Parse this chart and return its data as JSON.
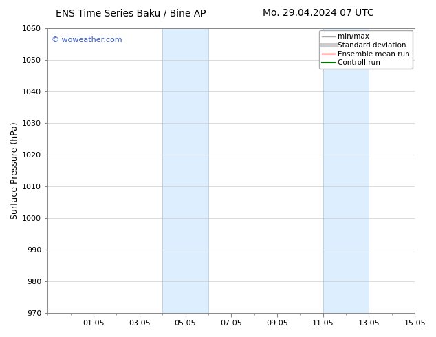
{
  "title_left": "ENS Time Series Baku / Bine AP",
  "title_right": "Mo. 29.04.2024 07 UTC",
  "ylabel": "Surface Pressure (hPa)",
  "ylim": [
    970,
    1060
  ],
  "yticks": [
    970,
    980,
    990,
    1000,
    1010,
    1020,
    1030,
    1040,
    1050,
    1060
  ],
  "xtick_labels": [
    "01.05",
    "03.05",
    "05.05",
    "07.05",
    "09.05",
    "11.05",
    "13.05",
    "15.05"
  ],
  "xtick_offsets": [
    2,
    4,
    6,
    8,
    10,
    12,
    14,
    16
  ],
  "xlim": [
    0,
    16
  ],
  "shaded_bands": [
    {
      "start": 5,
      "end": 7
    },
    {
      "start": 12,
      "end": 14
    }
  ],
  "shaded_color": "#ddeeff",
  "shaded_edge_color": "#bbccdd",
  "background_color": "#ffffff",
  "watermark_text": "© woweather.com",
  "watermark_color": "#3355cc",
  "legend_items": [
    {
      "label": "min/max",
      "color": "#aaaaaa",
      "lw": 1.0
    },
    {
      "label": "Standard deviation",
      "color": "#cccccc",
      "lw": 5
    },
    {
      "label": "Ensemble mean run",
      "color": "#ff0000",
      "lw": 1.0
    },
    {
      "label": "Controll run",
      "color": "#007700",
      "lw": 1.5
    }
  ],
  "grid_color": "#cccccc",
  "title_fontsize": 10,
  "tick_fontsize": 8,
  "ylabel_fontsize": 9,
  "watermark_fontsize": 8,
  "legend_fontsize": 7.5
}
